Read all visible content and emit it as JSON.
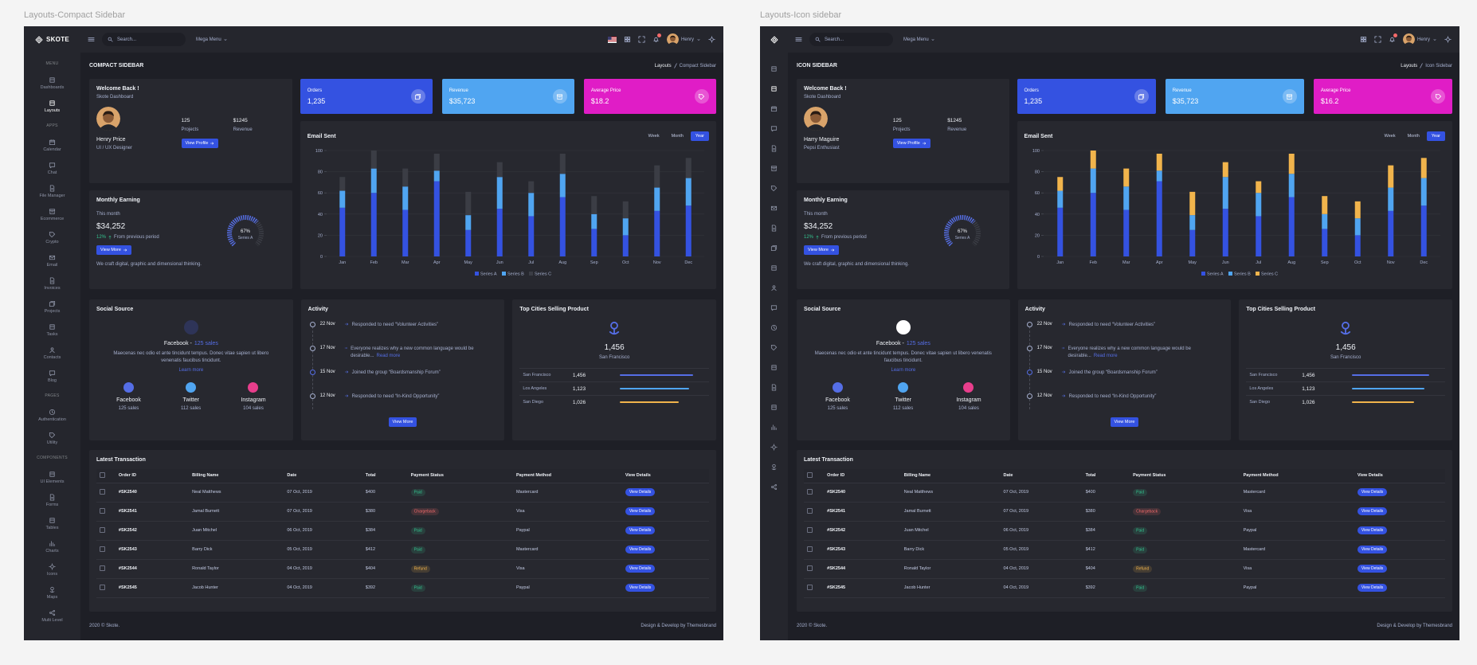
{
  "shared": {
    "search": "Search...",
    "mega_menu": "Mega Menu",
    "user": "Henry",
    "welcome": {
      "title": "Welcome Back !",
      "subtitle": "Skote Dashboard",
      "stats": [
        {
          "value": "125",
          "label": "Projects"
        },
        {
          "value": "$1245",
          "label": "Revenue"
        }
      ],
      "button": "View Profile"
    },
    "earning": {
      "title": "Monthly Earning",
      "period": "This month",
      "amount": "$34,252",
      "change": "12%",
      "change_text": "From previous period",
      "button": "View More",
      "note": "We craft digital, graphic and dimensional thinking.",
      "gauge": {
        "value": 67,
        "label": "67%",
        "series": "Series A",
        "color": "#556ee6"
      }
    },
    "social": {
      "title": "Social Source",
      "featured": {
        "name": "Facebook -",
        "sales": "125 sales"
      },
      "text": "Maecenas nec odio et ante tincidunt tempus. Donec vitae sapien ut libero venenatis faucibus tincidunt.",
      "link": "Learn more",
      "items": [
        {
          "name": "Facebook",
          "sales": "125 sales",
          "color": "#556ee6"
        },
        {
          "name": "Twitter",
          "sales": "112 sales",
          "color": "#50a5f1"
        },
        {
          "name": "Instagram",
          "sales": "104 sales",
          "color": "#e83e8c"
        }
      ]
    },
    "activity": {
      "title": "Activity",
      "button": "View More",
      "items": [
        {
          "date": "22 Nov",
          "text": "Responded to need “Volunteer Activities”"
        },
        {
          "date": "17 Nov",
          "text": "Everyone realizes why a new common language would be desirable...",
          "link": "Read more"
        },
        {
          "date": "15 Nov",
          "text": "Joined the group “Boardsmanship Forum”"
        },
        {
          "date": "12 Nov",
          "text": "Responded to need “In-Kind Opportunity”"
        }
      ]
    },
    "cities": {
      "title": "Top Cities Selling Product",
      "total": "1,456",
      "city": "San Francisco",
      "rows": [
        {
          "name": "San Francisco",
          "value": "1,456",
          "progress": 87,
          "color": "#556ee6"
        },
        {
          "name": "Los Angeles",
          "value": "1,123",
          "progress": 82,
          "color": "#50a5f1"
        },
        {
          "name": "San Diego",
          "value": "1,026",
          "progress": 70,
          "color": "#f1b44c"
        }
      ]
    },
    "transactions": {
      "title": "Latest Transaction",
      "columns": [
        "Order ID",
        "Billing Name",
        "Date",
        "Total",
        "Payment Status",
        "Payment Method",
        "View Details"
      ],
      "rows": [
        {
          "cells": [
            "#SK2540",
            "Neal Matthews",
            "07 Oct, 2019",
            "$400",
            "Paid",
            "Mastercard",
            "View Details"
          ],
          "status_color": "#34c38f"
        },
        {
          "cells": [
            "#SK2541",
            "Jamal Burnett",
            "07 Oct, 2019",
            "$380",
            "Chargeback",
            "Visa",
            "View Details"
          ],
          "status_color": "#f46a6a"
        },
        {
          "cells": [
            "#SK2542",
            "Juan Mitchel",
            "06 Oct, 2019",
            "$384",
            "Paid",
            "Paypal",
            "View Details"
          ],
          "status_color": "#34c38f"
        },
        {
          "cells": [
            "#SK2543",
            "Barry Dick",
            "05 Oct, 2019",
            "$412",
            "Paid",
            "Mastercard",
            "View Details"
          ],
          "status_color": "#34c38f"
        },
        {
          "cells": [
            "#SK2544",
            "Ronald Taylor",
            "04 Oct, 2019",
            "$404",
            "Refund",
            "Visa",
            "View Details"
          ],
          "status_color": "#f1b44c"
        },
        {
          "cells": [
            "#SK2545",
            "Jacob Hunter",
            "04 Oct, 2019",
            "$392",
            "Paid",
            "Paypal",
            "View Details"
          ],
          "status_color": "#34c38f"
        }
      ]
    },
    "footer": {
      "left": "2020 © Skote.",
      "right": "Design & Develop by Themesbrand"
    }
  },
  "panels": [
    {
      "label": "Layouts-Compact Sidebar",
      "logo": "SKOTE",
      "title": "COMPACT SIDEBAR",
      "breadcrumb": [
        "Layouts",
        "Compact Sidebar"
      ],
      "sidebar": [
        {
          "heading": "MENU"
        },
        {
          "label": "Dashboards"
        },
        {
          "label": "Layouts",
          "active": true
        },
        {
          "heading": "APPS"
        },
        {
          "label": "Calendar"
        },
        {
          "label": "Chat"
        },
        {
          "label": "File Manager"
        },
        {
          "label": "Ecommerce"
        },
        {
          "label": "Crypto"
        },
        {
          "label": "Email"
        },
        {
          "label": "Invoices"
        },
        {
          "label": "Projects"
        },
        {
          "label": "Tasks"
        },
        {
          "label": "Contacts"
        },
        {
          "label": "Blog"
        },
        {
          "heading": "PAGES"
        },
        {
          "label": "Authentication"
        },
        {
          "label": "Utility"
        },
        {
          "heading": "COMPONENTS"
        },
        {
          "label": "UI Elements"
        },
        {
          "label": "Forms"
        },
        {
          "label": "Tables"
        },
        {
          "label": "Charts"
        },
        {
          "label": "Icons"
        },
        {
          "label": "Maps"
        },
        {
          "label": "Multi Level"
        }
      ],
      "welcome": {
        "name": "Henry Price",
        "role": "UI / UX Designer"
      },
      "stats": [
        {
          "label": "Orders",
          "value": "1,235",
          "color": "#3452e1"
        },
        {
          "label": "Revenue",
          "value": "$35,723",
          "color": "#50a5f1"
        },
        {
          "label": "Average Price",
          "value": "$18.2",
          "color": "#e01dc6"
        }
      ],
      "email": {
        "type": "bar",
        "stacked": true,
        "title": "Email Sent",
        "tabs": [
          "Week",
          "Month",
          "Year"
        ],
        "active_tab": 2,
        "categories": [
          "Jan",
          "Feb",
          "Mar",
          "Apr",
          "May",
          "Jun",
          "Jul",
          "Aug",
          "Sep",
          "Oct",
          "Nov",
          "Dec"
        ],
        "series": [
          {
            "name": "Series A",
            "color": "#3452e1",
            "values": [
              46,
              60,
              44,
              71,
              25,
              45,
              38,
              56,
              26,
              20,
              43,
              48
            ]
          },
          {
            "name": "Series B",
            "color": "#50a5f1",
            "values": [
              16,
              23,
              22,
              10,
              14,
              30,
              22,
              22,
              14,
              16,
              22,
              26
            ]
          },
          {
            "name": "Series C",
            "color": "#3b3d45",
            "values": [
              13,
              17,
              17,
              16,
              22,
              14,
              11,
              19,
              17,
              16,
              21,
              19
            ]
          }
        ],
        "ylim": [
          0,
          100
        ],
        "yticks": [
          0,
          20,
          40,
          60,
          80,
          100
        ],
        "grid": true
      }
    },
    {
      "label": "Layouts-Icon sidebar",
      "title": "ICON SIDEBAR",
      "breadcrumb": [
        "Layouts",
        "Icon Sidebar"
      ],
      "welcome": {
        "name": "Harry Maguire",
        "role": "Pepsi Enthusiast"
      },
      "stats": [
        {
          "label": "Orders",
          "value": "1,235",
          "color": "#3452e1"
        },
        {
          "label": "Revenue",
          "value": "$35,723",
          "color": "#50a5f1"
        },
        {
          "label": "Average Price",
          "value": "$16.2",
          "color": "#e01dc6"
        }
      ],
      "email": {
        "type": "bar",
        "stacked": true,
        "title": "Email Sent",
        "tabs": [
          "Week",
          "Month",
          "Year"
        ],
        "active_tab": 2,
        "categories": [
          "Jan",
          "Feb",
          "Mar",
          "Apr",
          "May",
          "Jun",
          "Jul",
          "Aug",
          "Sep",
          "Oct",
          "Nov",
          "Dec"
        ],
        "series": [
          {
            "name": "Series A",
            "color": "#3452e1",
            "values": [
              46,
              60,
              44,
              71,
              25,
              45,
              38,
              56,
              26,
              20,
              43,
              48
            ]
          },
          {
            "name": "Series B",
            "color": "#50a5f1",
            "values": [
              16,
              23,
              22,
              10,
              14,
              30,
              22,
              22,
              14,
              16,
              22,
              26
            ]
          },
          {
            "name": "Series C",
            "color": "#f1b44c",
            "values": [
              13,
              17,
              17,
              16,
              22,
              14,
              11,
              19,
              17,
              16,
              21,
              19
            ]
          }
        ],
        "ylim": [
          0,
          100
        ],
        "yticks": [
          0,
          20,
          40,
          60,
          80,
          100
        ],
        "grid": true
      }
    }
  ]
}
